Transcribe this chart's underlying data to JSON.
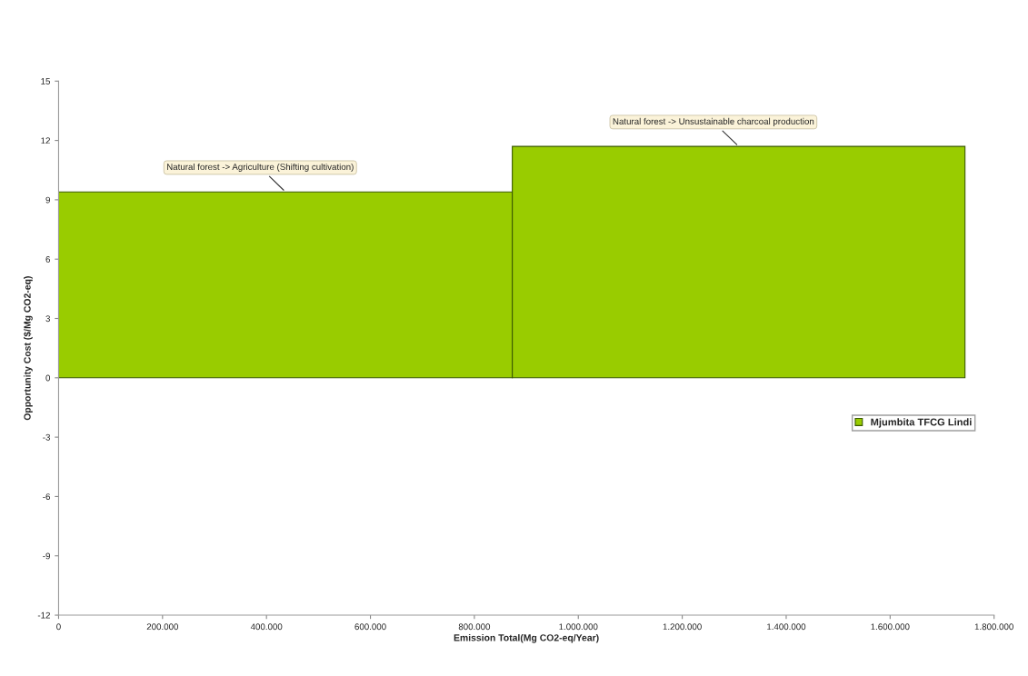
{
  "chart_data": {
    "type": "histogram",
    "xlabel": "Emission Total(Mg CO2-eq/Year)",
    "ylabel": "Opportunity Cost ($/Mg CO2-eq)",
    "bins": [
      0,
      873000,
      1744000
    ],
    "series": [
      {
        "name": "Mjumbita TFCG Lindi",
        "color": "#99cc00",
        "values": [
          9.4,
          11.7
        ]
      }
    ],
    "xlim": [
      0,
      1800000
    ],
    "xticks": [
      0,
      {
        "value": 200000,
        "label": "200.000"
      },
      {
        "value": 400000,
        "label": "400.000"
      },
      {
        "value": 600000,
        "label": "600.000"
      },
      {
        "value": 800000,
        "label": "800.000"
      },
      {
        "value": 1000000,
        "label": "1.000.000"
      },
      {
        "value": 1200000,
        "label": "1.200.000"
      },
      {
        "value": 1400000,
        "label": "1.400.000"
      },
      {
        "value": 1600000,
        "label": "1.600.000"
      },
      {
        "value": 1800000,
        "label": "1.800.000"
      }
    ],
    "ylim": [
      -12,
      15
    ],
    "yticks": [
      -12,
      -9,
      -6,
      -3,
      0,
      3,
      6,
      9,
      12,
      15
    ],
    "annotations": [
      "Natural forest -> Agriculture (Shifting cultivation)",
      "Natural forest -> Unsustainable charcoal production"
    ],
    "legend": "right",
    "grid": false
  }
}
